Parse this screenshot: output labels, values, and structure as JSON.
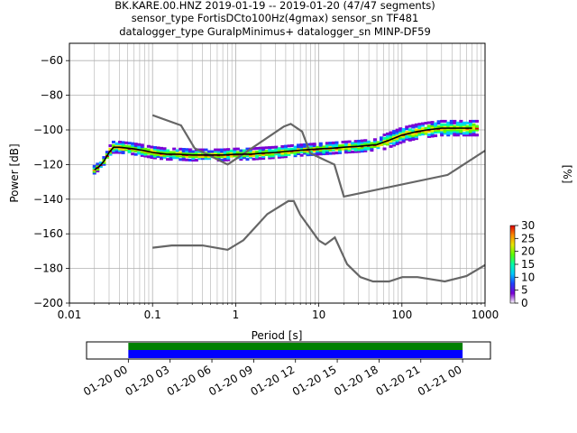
{
  "title": {
    "line1": "BK.KARE.00.HNZ   2019-01-19 -- 2019-01-20  (47/47 segments)",
    "line2": "sensor_type FortisDCto100Hz(4gmax) sensor_sn TF481",
    "line3": "datalogger_type GuralpMinimus+ datalogger_sn MINP-DF59"
  },
  "chart_data": [
    {
      "type": "heatmap",
      "name": "ppsd",
      "xlabel": "Period [s]",
      "ylabel": "Power [dB]",
      "xscale": "log",
      "xlim": [
        0.01,
        1000
      ],
      "ylim": [
        -200,
        -50
      ],
      "xticks": [
        "0.01",
        "0.1",
        "1",
        "10",
        "100",
        "1000"
      ],
      "yticks": [
        "−200",
        "−180",
        "−160",
        "−140",
        "−120",
        "−100",
        "−80",
        "−60"
      ],
      "grid": true,
      "colorbar": {
        "label": "[%]",
        "ticks": [
          "0",
          "5",
          "10",
          "15",
          "20",
          "25",
          "30"
        ],
        "range": [
          0,
          30
        ],
        "colors": [
          "#ffffff",
          "#7b00d4",
          "#1f3fff",
          "#00c8ff",
          "#00ffaa",
          "#5aff00",
          "#e6e600",
          "#ff8c00",
          "#e00000"
        ]
      },
      "series": [
        {
          "key": "nlnm",
          "color": "#666666",
          "x": [
            0.1,
            0.17,
            0.4,
            0.8,
            1.24,
            2.4,
            4.3,
            5.0,
            6.0,
            10.0,
            12.0,
            15.6,
            21.9,
            31.6,
            45.0,
            70.0,
            101.0,
            154.0,
            328.0,
            600.0,
            1000.0
          ],
          "y": [
            -168.0,
            -166.7,
            -166.7,
            -169.2,
            -163.7,
            -148.6,
            -141.1,
            -141.1,
            -149.0,
            -163.8,
            -166.2,
            -162.1,
            -177.5,
            -185.0,
            -187.5,
            -187.5,
            -185.0,
            -185.0,
            -187.5,
            -184.4,
            -178.0
          ]
        },
        {
          "key": "nhnm",
          "color": "#666666",
          "x": [
            0.1,
            0.22,
            0.32,
            0.8,
            3.8,
            4.6,
            6.3,
            7.9,
            15.4,
            20.0,
            354.8,
            1000.0
          ],
          "y": [
            -91.5,
            -97.4,
            -110.5,
            -120.0,
            -98.0,
            -96.5,
            -101.0,
            -113.5,
            -120.0,
            -138.5,
            -126.0,
            -112.0
          ]
        },
        {
          "key": "mean",
          "color": "#000000",
          "x": [
            0.02,
            0.023,
            0.026,
            0.03,
            0.034,
            0.04,
            0.06,
            0.08,
            0.1,
            0.15,
            0.2,
            0.3,
            0.5,
            0.7,
            1.0,
            1.5,
            2.0,
            3.0,
            5.0,
            7.0,
            10.0,
            15.0,
            20.0,
            30.0,
            50.0,
            70.0,
            100.0,
            150.0,
            200.0,
            300.0,
            500.0,
            700.0
          ],
          "y": [
            -123,
            -121,
            -118,
            -113,
            -110,
            -110,
            -111,
            -112,
            -113,
            -114,
            -114,
            -114.5,
            -114.5,
            -114.5,
            -114,
            -114,
            -113.5,
            -113,
            -112,
            -111.5,
            -111,
            -110.5,
            -110,
            -109.5,
            -108.5,
            -106,
            -103,
            -101,
            -100,
            -99,
            -99,
            -99
          ]
        }
      ]
    },
    {
      "type": "bar",
      "name": "data-coverage",
      "xticks": [
        "01-20 00",
        "01-20 03",
        "01-20 06",
        "01-20 09",
        "01-20 12",
        "01-20 15",
        "01-20 18",
        "01-20 21",
        "01-21 00"
      ],
      "xlim": [
        "01-19 21:00",
        "01-21 02:00"
      ],
      "series": [
        {
          "key": "segments",
          "color": "#008000",
          "start": "01-20 00",
          "end": "01-21 00"
        },
        {
          "key": "used",
          "color": "#0000ff",
          "start": "01-20 00",
          "end": "01-21 00"
        }
      ]
    }
  ]
}
